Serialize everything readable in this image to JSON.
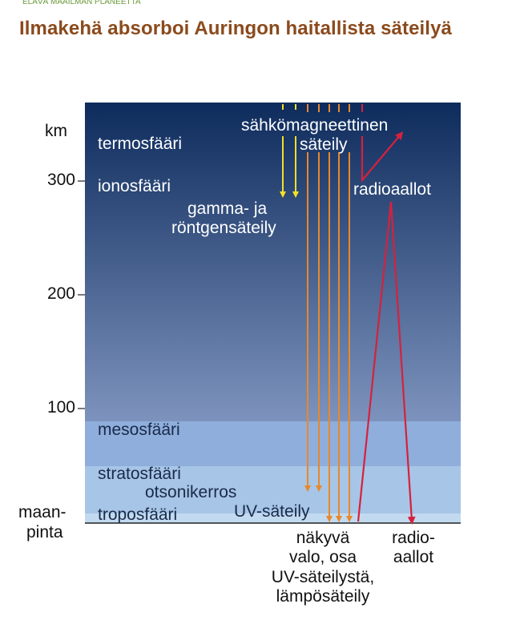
{
  "header": {
    "top_note": "ELÄVÄ MAAILMAN PLANEETTA",
    "title": "Ilmakehä absorboi Auringon haitallista säteilyä"
  },
  "axis": {
    "unit": "km",
    "ticks": [
      "300",
      "200",
      "100"
    ],
    "ground_label_line1": "maan-",
    "ground_label_line2": "pinta"
  },
  "layers": {
    "termosfaari": "termosfääri",
    "ionosfaari": "ionosfääri",
    "mesosfaari": "mesosfääri",
    "stratosfaari": "stratosfääri",
    "otsonikerros": "otsonikerros",
    "troposfaari": "troposfääri"
  },
  "radiation": {
    "em_line1": "sähkömagneettinen",
    "em_line2": "säteily",
    "gamma_line1": "gamma- ja",
    "gamma_line2": "röntgensäteily",
    "radio_top": "radioaallot",
    "uv": "UV-säteily"
  },
  "bottom": {
    "visible_line1": "näkyvä",
    "visible_line2": "valo, osa",
    "visible_line3": "UV-säteilystä,",
    "visible_line4": "lämpösäteily",
    "radio_line1": "radio-",
    "radio_line2": "aallot"
  },
  "colors": {
    "sky_top": "#0d2b5c",
    "sky_bottom": "#7d93bd",
    "meso": "#8faedb",
    "strato": "#a7c5e6",
    "tropo": "#c2daf0",
    "gamma_arrow": "#f2e02a",
    "orange_arrow": "#e8882a",
    "red_arrow": "#d6213d"
  }
}
